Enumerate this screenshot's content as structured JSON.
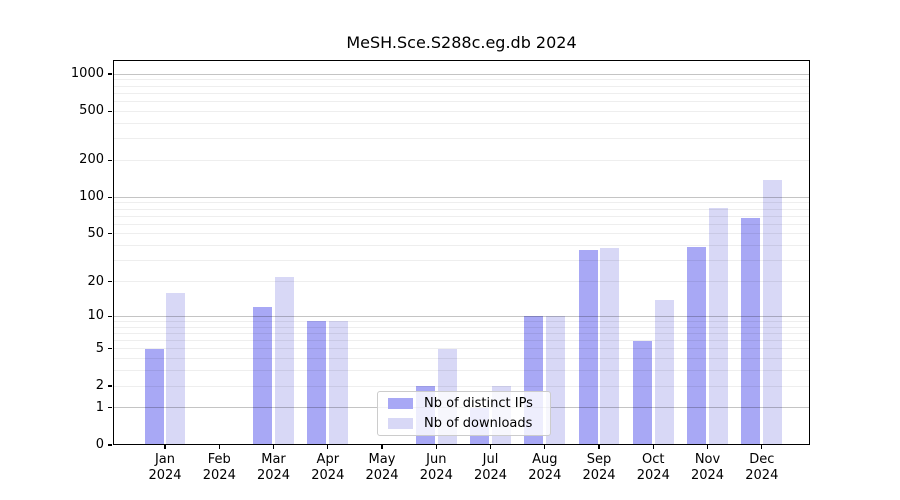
{
  "chart_data": {
    "type": "bar",
    "title": "MeSH.Sce.S288c.eg.db 2024",
    "categories": [
      "Jan 2024",
      "Feb 2024",
      "Mar 2024",
      "Apr 2024",
      "May 2024",
      "Jun 2024",
      "Jul 2024",
      "Aug 2024",
      "Sep 2024",
      "Oct 2024",
      "Nov 2024",
      "Dec 2024"
    ],
    "series": [
      {
        "name": "Nb of distinct IPs",
        "color": "#a8a8f5",
        "values": [
          5,
          0,
          12,
          9,
          0,
          2,
          1,
          10,
          37,
          6,
          39,
          67
        ]
      },
      {
        "name": "Nb of downloads",
        "color": "#d8d8f6",
        "values": [
          16,
          0,
          22,
          9,
          0,
          5,
          2,
          10,
          38,
          14,
          82,
          137
        ]
      }
    ],
    "yscale": "log1p",
    "yticks": [
      0,
      1,
      2,
      5,
      10,
      20,
      50,
      100,
      200,
      500,
      1000
    ],
    "ylim": [
      0,
      1300
    ],
    "xlabel": "",
    "ylabel": "",
    "grid": true,
    "legend_position": "lower center"
  },
  "colors": {
    "grid_minor": "#ededed",
    "grid_major": "#c4c4c4",
    "axis": "#000000",
    "legend_border": "#cccccc"
  }
}
